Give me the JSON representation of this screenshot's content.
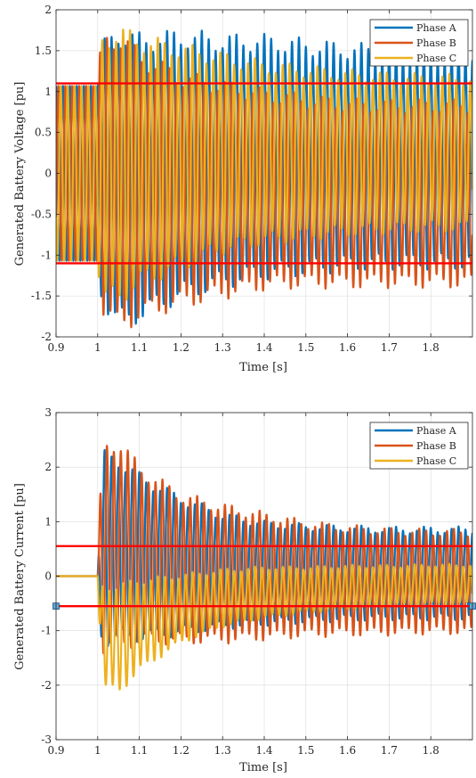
{
  "chart_data": [
    {
      "type": "line",
      "title": "",
      "xlabel": "Time [s]",
      "ylabel": "Generated Battery Voltage [pu]",
      "xlim": [
        0.9,
        1.9
      ],
      "ylim": [
        -2,
        2
      ],
      "xticks": [
        0.9,
        1,
        1.1,
        1.2,
        1.3,
        1.4,
        1.5,
        1.6,
        1.7,
        1.8
      ],
      "xtick_labels": [
        "0.9",
        "1",
        "1.1",
        "1.2",
        "1.3",
        "1.4",
        "1.5",
        "1.6",
        "1.7",
        "1.8"
      ],
      "yticks": [
        -2,
        -1.5,
        -1,
        -0.5,
        0,
        0.5,
        1,
        1.5,
        2
      ],
      "ytick_labels": [
        "-2",
        "-1.5",
        "-1",
        "-0.5",
        "0",
        "0.5",
        "1",
        "1.5",
        "2"
      ],
      "grid": true,
      "legend_position": "top-right",
      "legend": [
        "Phase A",
        "Phase B",
        "Phase C"
      ],
      "series": [
        {
          "name": "Phase A",
          "color": "#0072BD",
          "freq": 60,
          "phase_deg": 90,
          "pre_amp": 1.07,
          "envelope_time": [
            1.0,
            1.01,
            1.05,
            1.1,
            1.2,
            1.3,
            1.4,
            1.5,
            1.6,
            1.7,
            1.8,
            1.9
          ],
          "envelope_amp": [
            1.07,
            1.5,
            1.75,
            1.65,
            1.55,
            1.45,
            1.4,
            1.35,
            1.3,
            1.28,
            1.28,
            1.28
          ],
          "envelope_offset": [
            0,
            0,
            -0.05,
            -0.05,
            0.1,
            0.15,
            0.2,
            0.2,
            0.2,
            0.2,
            0.2,
            0.2
          ]
        },
        {
          "name": "Phase B",
          "color": "#D95319",
          "freq": 60,
          "phase_deg": -30,
          "pre_amp": 1.07,
          "envelope_time": [
            1.0,
            1.01,
            1.05,
            1.1,
            1.2,
            1.3,
            1.4,
            1.5,
            1.6,
            1.7,
            1.8,
            1.9
          ],
          "envelope_amp": [
            1.07,
            1.6,
            1.75,
            1.55,
            1.35,
            1.25,
            1.15,
            1.1,
            1.08,
            1.07,
            1.07,
            1.07
          ],
          "envelope_offset": [
            0,
            0,
            -0.1,
            -0.15,
            -0.2,
            -0.2,
            -0.2,
            -0.22,
            -0.25,
            -0.25,
            -0.25,
            -0.25
          ]
        },
        {
          "name": "Phase C",
          "color": "#EDB120",
          "freq": 60,
          "phase_deg": 210,
          "pre_amp": 1.07,
          "envelope_time": [
            1.0,
            1.01,
            1.05,
            1.1,
            1.2,
            1.3,
            1.4,
            1.5,
            1.6,
            1.7,
            1.8,
            1.9
          ],
          "envelope_amp": [
            1.07,
            1.55,
            1.6,
            1.45,
            1.3,
            1.15,
            1.05,
            1.0,
            0.95,
            0.92,
            0.9,
            0.9
          ],
          "envelope_offset": [
            0,
            0.05,
            0.1,
            0.15,
            0.2,
            0.25,
            0.25,
            0.25,
            0.25,
            0.25,
            0.25,
            0.25
          ]
        }
      ],
      "reference_lines": [
        {
          "y": 1.1,
          "color": "#ff0000"
        },
        {
          "y": -1.1,
          "color": "#ff0000"
        }
      ]
    },
    {
      "type": "line",
      "title": "",
      "xlabel": "Time [s]",
      "ylabel": "Generated Battery Current [pu]",
      "xlim": [
        0.9,
        1.9
      ],
      "ylim": [
        -3,
        3
      ],
      "xticks": [
        0.9,
        1,
        1.1,
        1.2,
        1.3,
        1.4,
        1.5,
        1.6,
        1.7,
        1.8
      ],
      "xtick_labels": [
        "0.9",
        "1",
        "1.1",
        "1.2",
        "1.3",
        "1.4",
        "1.5",
        "1.6",
        "1.7",
        "1.8"
      ],
      "yticks": [
        -3,
        -2,
        -1,
        0,
        1,
        2,
        3
      ],
      "ytick_labels": [
        "-3",
        "-2",
        "-1",
        "0",
        "1",
        "2",
        "3"
      ],
      "grid": true,
      "legend_position": "top-right",
      "legend": [
        "Phase A",
        "Phase B",
        "Phase C"
      ],
      "series": [
        {
          "name": "Phase A",
          "color": "#0072BD",
          "freq": 60,
          "phase_deg": 90,
          "pre_amp": 0,
          "envelope_time": [
            1.0,
            1.01,
            1.05,
            1.1,
            1.2,
            1.3,
            1.4,
            1.5,
            1.6,
            1.7,
            1.8,
            1.9
          ],
          "envelope_amp": [
            0,
            1.7,
            1.6,
            1.45,
            1.2,
            1.0,
            0.9,
            0.85,
            0.82,
            0.8,
            0.8,
            0.8
          ],
          "envelope_offset": [
            0,
            0.5,
            0.5,
            0.35,
            0.2,
            0.1,
            0.05,
            0.05,
            0.05,
            0.05,
            0.05,
            0.05
          ]
        },
        {
          "name": "Phase B",
          "color": "#D95319",
          "freq": 60,
          "phase_deg": -30,
          "pre_amp": 0,
          "envelope_time": [
            1.0,
            1.01,
            1.05,
            1.1,
            1.2,
            1.3,
            1.4,
            1.5,
            1.6,
            1.7,
            1.8,
            1.9
          ],
          "envelope_amp": [
            0,
            1.8,
            1.85,
            1.55,
            1.3,
            1.2,
            1.1,
            1.0,
            0.95,
            0.92,
            0.9,
            0.9
          ],
          "envelope_offset": [
            0,
            0.5,
            0.6,
            0.4,
            0.15,
            0.05,
            0.0,
            -0.05,
            -0.08,
            -0.1,
            -0.1,
            -0.1
          ]
        },
        {
          "name": "Phase C",
          "color": "#EDB120",
          "freq": 60,
          "phase_deg": 210,
          "pre_amp": 0,
          "envelope_time": [
            1.0,
            1.01,
            1.05,
            1.1,
            1.2,
            1.3,
            1.4,
            1.5,
            1.6,
            1.7,
            1.8,
            1.9
          ],
          "envelope_amp": [
            0,
            0.9,
            0.95,
            0.8,
            0.6,
            0.5,
            0.45,
            0.4,
            0.38,
            0.36,
            0.35,
            0.35
          ],
          "envelope_offset": [
            0,
            -1.1,
            -1.15,
            -0.9,
            -0.6,
            -0.4,
            -0.3,
            -0.25,
            -0.2,
            -0.18,
            -0.15,
            -0.15
          ]
        }
      ],
      "reference_lines": [
        {
          "y": 0.55,
          "color": "#ff0000"
        },
        {
          "y": -0.55,
          "color": "#ff0000"
        }
      ],
      "reference_markers": [
        {
          "x": 0.9,
          "y": -0.55
        },
        {
          "x": 1.9,
          "y": -0.55
        }
      ]
    }
  ]
}
